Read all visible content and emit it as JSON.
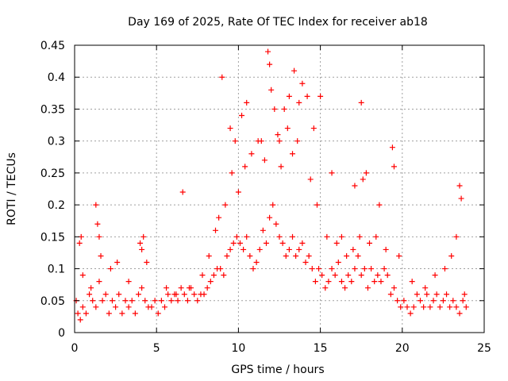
{
  "chart_data": {
    "type": "scatter",
    "title": "Day 169 of 2025, Rate Of TEC Index for receiver ab18",
    "xlabel": "GPS time / hours",
    "ylabel": "ROTI / TECUs",
    "xlim": [
      0,
      25
    ],
    "ylim": [
      0,
      0.45
    ],
    "x_ticks": [
      "0",
      "5",
      "10",
      "15",
      "20",
      "25"
    ],
    "y_ticks": [
      "0",
      "0.05",
      "0.1",
      "0.15",
      "0.2",
      "0.25",
      "0.3",
      "0.35",
      "0.4",
      "0.45"
    ],
    "grid": true,
    "marker": "plus",
    "color": "#ff0000",
    "series": [
      {
        "x": [
          0.1,
          0.2,
          0.35,
          0.5,
          0.7,
          0.9,
          1.1,
          1.3,
          1.5,
          1.7,
          1.9,
          2.1,
          2.3,
          2.5,
          2.7,
          2.9,
          3.1,
          3.3,
          3.5,
          3.7,
          3.9,
          4.1,
          4.3,
          4.5,
          4.7,
          4.9,
          5.1,
          5.3,
          5.5,
          5.7,
          5.9,
          6.1,
          6.3,
          6.5,
          6.7,
          6.9,
          7.1,
          7.3,
          7.5,
          7.7,
          7.9,
          8.1,
          8.3,
          8.5,
          8.7,
          8.9,
          9.1,
          9.3,
          9.5,
          9.7,
          9.9,
          10.1,
          10.3,
          10.5,
          10.7,
          10.9,
          11.1,
          11.3,
          11.5,
          11.7,
          11.9,
          12.1,
          12.3,
          12.5,
          12.7,
          12.9,
          13.1,
          13.3,
          13.5,
          13.7,
          13.9,
          14.1,
          14.3,
          14.5,
          14.7,
          14.9,
          15.1,
          15.3,
          15.5,
          15.7,
          15.9,
          16.1,
          16.3,
          16.5,
          16.7,
          16.9,
          17.1,
          17.3,
          17.5,
          17.7,
          17.9,
          18.1,
          18.3,
          18.5,
          18.7,
          18.9,
          19.1,
          19.3,
          19.5,
          19.7,
          19.9,
          20.1,
          20.3,
          20.5,
          20.7,
          20.9,
          21.1,
          21.3,
          21.5,
          21.7,
          21.9,
          22.1,
          22.3,
          22.5,
          22.7,
          22.9,
          23.1,
          23.3,
          23.5,
          23.7,
          23.9,
          0.3,
          0.4,
          1.3,
          1.4,
          1.5,
          4.0,
          4.2,
          6.6,
          8.6,
          9.0,
          9.5,
          9.8,
          10.0,
          10.2,
          10.5,
          11.2,
          11.8,
          11.9,
          12.0,
          12.2,
          12.5,
          12.8,
          13.1,
          13.4,
          13.7,
          13.9,
          14.2,
          14.6,
          15.0,
          15.7,
          16.3,
          17.1,
          17.5,
          17.6,
          17.8,
          18.6,
          19.4,
          19.5,
          23.5,
          23.6,
          0.5,
          1.0,
          1.6,
          2.2,
          2.6,
          3.3,
          4.1,
          4.4,
          5.6,
          6.2,
          7.0,
          7.8,
          8.2,
          8.8,
          9.2,
          9.6,
          10.4,
          10.8,
          11.4,
          11.6,
          12.4,
          12.6,
          13.0,
          13.3,
          13.6,
          14.4,
          14.8,
          15.4,
          16.0,
          16.6,
          17.0,
          17.4,
          18.0,
          18.4,
          19.0,
          19.8,
          20.6,
          21.4,
          22.0,
          22.6,
          23.0,
          23.3,
          23.8
        ],
        "y": [
          0.05,
          0.03,
          0.02,
          0.04,
          0.03,
          0.06,
          0.05,
          0.04,
          0.08,
          0.05,
          0.06,
          0.03,
          0.05,
          0.04,
          0.06,
          0.03,
          0.05,
          0.04,
          0.05,
          0.03,
          0.06,
          0.07,
          0.05,
          0.04,
          0.04,
          0.05,
          0.03,
          0.05,
          0.04,
          0.06,
          0.05,
          0.06,
          0.05,
          0.07,
          0.06,
          0.05,
          0.07,
          0.06,
          0.05,
          0.06,
          0.06,
          0.07,
          0.08,
          0.09,
          0.1,
          0.1,
          0.09,
          0.12,
          0.13,
          0.14,
          0.15,
          0.14,
          0.13,
          0.15,
          0.12,
          0.1,
          0.11,
          0.13,
          0.16,
          0.14,
          0.18,
          0.2,
          0.17,
          0.15,
          0.14,
          0.12,
          0.13,
          0.15,
          0.12,
          0.13,
          0.14,
          0.11,
          0.12,
          0.1,
          0.08,
          0.1,
          0.09,
          0.07,
          0.08,
          0.1,
          0.09,
          0.11,
          0.08,
          0.07,
          0.09,
          0.08,
          0.1,
          0.12,
          0.09,
          0.1,
          0.07,
          0.1,
          0.08,
          0.09,
          0.08,
          0.1,
          0.09,
          0.06,
          0.07,
          0.05,
          0.04,
          0.05,
          0.04,
          0.03,
          0.04,
          0.06,
          0.05,
          0.04,
          0.06,
          0.04,
          0.05,
          0.06,
          0.04,
          0.05,
          0.06,
          0.04,
          0.05,
          0.04,
          0.03,
          0.05,
          0.04,
          0.14,
          0.15,
          0.2,
          0.17,
          0.15,
          0.14,
          0.15,
          0.22,
          0.16,
          0.4,
          0.32,
          0.3,
          0.22,
          0.34,
          0.36,
          0.3,
          0.44,
          0.42,
          0.38,
          0.35,
          0.3,
          0.35,
          0.37,
          0.41,
          0.36,
          0.39,
          0.37,
          0.32,
          0.37,
          0.25,
          0.15,
          0.23,
          0.36,
          0.24,
          0.25,
          0.2,
          0.29,
          0.26,
          0.23,
          0.21,
          0.09,
          0.07,
          0.12,
          0.1,
          0.11,
          0.08,
          0.13,
          0.11,
          0.07,
          0.06,
          0.07,
          0.09,
          0.12,
          0.18,
          0.2,
          0.25,
          0.26,
          0.28,
          0.3,
          0.27,
          0.31,
          0.26,
          0.32,
          0.28,
          0.3,
          0.24,
          0.2,
          0.15,
          0.14,
          0.12,
          0.13,
          0.15,
          0.14,
          0.15,
          0.13,
          0.12,
          0.08,
          0.07,
          0.09,
          0.1,
          0.12,
          0.15,
          0.06
        ]
      }
    ]
  }
}
